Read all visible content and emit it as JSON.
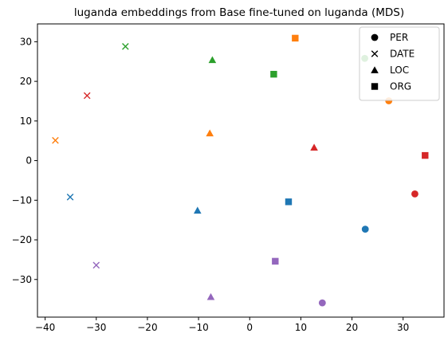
{
  "chart_data": {
    "type": "scatter",
    "title": "luganda embeddings from Base fine-tuned on luganda (MDS)",
    "xlabel": "",
    "ylabel": "",
    "xlim": [
      -41.5,
      38
    ],
    "ylim": [
      -39.5,
      34.5
    ],
    "xticks": [
      -40,
      -30,
      -20,
      -10,
      0,
      10,
      20,
      30
    ],
    "yticks": [
      -30,
      -20,
      -10,
      0,
      10,
      20,
      30
    ],
    "grid": false,
    "legend_position": "top-right",
    "legend": [
      {
        "label": "PER",
        "marker": "circle"
      },
      {
        "label": "DATE",
        "marker": "x"
      },
      {
        "label": "LOC",
        "marker": "triangle"
      },
      {
        "label": "ORG",
        "marker": "square"
      }
    ],
    "colors": {
      "blue": "#1f77b4",
      "orange": "#ff7f0e",
      "green": "#2ca02c",
      "red": "#d62728",
      "purple": "#9467bd"
    },
    "points": [
      {
        "x": 22.5,
        "y": 25.8,
        "marker": "circle",
        "color": "green"
      },
      {
        "x": 27.2,
        "y": 15.1,
        "marker": "circle",
        "color": "orange"
      },
      {
        "x": 32.3,
        "y": -8.4,
        "marker": "circle",
        "color": "red"
      },
      {
        "x": 22.6,
        "y": -17.3,
        "marker": "circle",
        "color": "blue"
      },
      {
        "x": 14.2,
        "y": -35.9,
        "marker": "circle",
        "color": "purple"
      },
      {
        "x": -24.3,
        "y": 28.8,
        "marker": "x",
        "color": "green"
      },
      {
        "x": -31.8,
        "y": 16.4,
        "marker": "x",
        "color": "red"
      },
      {
        "x": -38.0,
        "y": 5.1,
        "marker": "x",
        "color": "orange"
      },
      {
        "x": -35.1,
        "y": -9.2,
        "marker": "x",
        "color": "blue"
      },
      {
        "x": -30.0,
        "y": -26.4,
        "marker": "x",
        "color": "purple"
      },
      {
        "x": -7.3,
        "y": 25.4,
        "marker": "triangle",
        "color": "green"
      },
      {
        "x": -7.8,
        "y": 6.9,
        "marker": "triangle",
        "color": "orange"
      },
      {
        "x": 12.6,
        "y": 3.3,
        "marker": "triangle",
        "color": "red"
      },
      {
        "x": -10.2,
        "y": -12.6,
        "marker": "triangle",
        "color": "blue"
      },
      {
        "x": -7.6,
        "y": -34.4,
        "marker": "triangle",
        "color": "purple"
      },
      {
        "x": 8.9,
        "y": 30.9,
        "marker": "square",
        "color": "orange"
      },
      {
        "x": 4.7,
        "y": 21.8,
        "marker": "square",
        "color": "green"
      },
      {
        "x": 34.3,
        "y": 1.3,
        "marker": "square",
        "color": "red"
      },
      {
        "x": 7.6,
        "y": -10.4,
        "marker": "square",
        "color": "blue"
      },
      {
        "x": 5.0,
        "y": -25.4,
        "marker": "square",
        "color": "purple"
      }
    ]
  }
}
